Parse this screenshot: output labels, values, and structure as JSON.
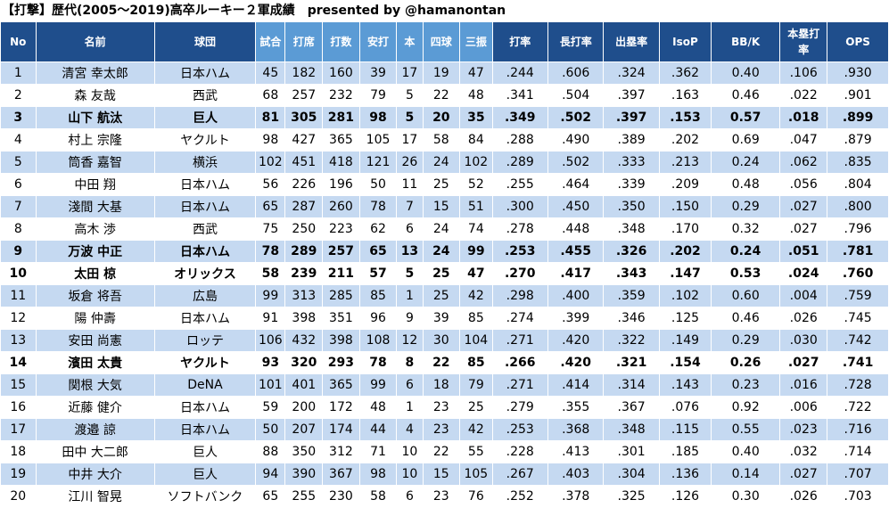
{
  "title": "【打撃】歴代(2005～2019)高卒ルーキー２軍成績　presented by @hamanontan",
  "headers": [
    "No",
    "名前",
    "球団",
    "試合",
    "打席",
    "打数",
    "安打",
    "本",
    "四球",
    "三振",
    "打率",
    "長打率",
    "出塁率",
    "IsoP",
    "BB/K",
    "本塁打率",
    "OPS"
  ],
  "rows": [
    {
      "cells": [
        "1",
        "清宮 幸太郎",
        "日本ハム",
        "45",
        "182",
        "160",
        "39",
        "17",
        "19",
        "47",
        ".244",
        ".606",
        ".324",
        ".362",
        "0.40",
        ".106",
        ".930"
      ],
      "bold": false
    },
    {
      "cells": [
        "2",
        "森 友哉",
        "西武",
        "68",
        "257",
        "232",
        "79",
        "5",
        "22",
        "48",
        ".341",
        ".504",
        ".397",
        ".163",
        "0.46",
        ".022",
        ".901"
      ],
      "bold": false
    },
    {
      "cells": [
        "3",
        "山下 航汰",
        "巨人",
        "81",
        "305",
        "281",
        "98",
        "5",
        "20",
        "35",
        ".349",
        ".502",
        ".397",
        ".153",
        "0.57",
        ".018",
        ".899"
      ],
      "bold": true
    },
    {
      "cells": [
        "4",
        "村上 宗隆",
        "ヤクルト",
        "98",
        "427",
        "365",
        "105",
        "17",
        "58",
        "84",
        ".288",
        ".490",
        ".389",
        ".202",
        "0.69",
        ".047",
        ".879"
      ],
      "bold": false
    },
    {
      "cells": [
        "5",
        "筒香 嘉智",
        "横浜",
        "102",
        "451",
        "418",
        "121",
        "26",
        "24",
        "102",
        ".289",
        ".502",
        ".333",
        ".213",
        "0.24",
        ".062",
        ".835"
      ],
      "bold": false
    },
    {
      "cells": [
        "6",
        "中田 翔",
        "日本ハム",
        "56",
        "226",
        "196",
        "50",
        "11",
        "25",
        "52",
        ".255",
        ".464",
        ".339",
        ".209",
        "0.48",
        ".056",
        ".804"
      ],
      "bold": false
    },
    {
      "cells": [
        "7",
        "淺間 大基",
        "日本ハム",
        "65",
        "287",
        "260",
        "78",
        "7",
        "15",
        "51",
        ".300",
        ".450",
        ".350",
        ".150",
        "0.29",
        ".027",
        ".800"
      ],
      "bold": false
    },
    {
      "cells": [
        "8",
        "高木 渉",
        "西武",
        "75",
        "250",
        "223",
        "62",
        "6",
        "24",
        "74",
        ".278",
        ".448",
        ".348",
        ".170",
        "0.32",
        ".027",
        ".796"
      ],
      "bold": false
    },
    {
      "cells": [
        "9",
        "万波 中正",
        "日本ハム",
        "78",
        "289",
        "257",
        "65",
        "13",
        "24",
        "99",
        ".253",
        ".455",
        ".326",
        ".202",
        "0.24",
        ".051",
        ".781"
      ],
      "bold": true
    },
    {
      "cells": [
        "10",
        "太田 椋",
        "オリックス",
        "58",
        "239",
        "211",
        "57",
        "5",
        "25",
        "47",
        ".270",
        ".417",
        ".343",
        ".147",
        "0.53",
        ".024",
        ".760"
      ],
      "bold": true
    },
    {
      "cells": [
        "11",
        "坂倉 将吾",
        "広島",
        "99",
        "313",
        "285",
        "85",
        "1",
        "25",
        "42",
        ".298",
        ".400",
        ".359",
        ".102",
        "0.60",
        ".004",
        ".759"
      ],
      "bold": false
    },
    {
      "cells": [
        "12",
        "陽 仲壽",
        "日本ハム",
        "91",
        "398",
        "351",
        "96",
        "9",
        "39",
        "85",
        ".274",
        ".399",
        ".346",
        ".125",
        "0.46",
        ".026",
        ".745"
      ],
      "bold": false
    },
    {
      "cells": [
        "13",
        "安田 尚憲",
        "ロッテ",
        "106",
        "432",
        "398",
        "108",
        "12",
        "30",
        "104",
        ".271",
        ".420",
        ".322",
        ".149",
        "0.29",
        ".030",
        ".742"
      ],
      "bold": false
    },
    {
      "cells": [
        "14",
        "濱田 太貴",
        "ヤクルト",
        "93",
        "320",
        "293",
        "78",
        "8",
        "22",
        "85",
        ".266",
        ".420",
        ".321",
        ".154",
        "0.26",
        ".027",
        ".741"
      ],
      "bold": true
    },
    {
      "cells": [
        "15",
        "関根 大気",
        "DeNA",
        "101",
        "401",
        "365",
        "99",
        "6",
        "18",
        "79",
        ".271",
        ".414",
        ".314",
        ".143",
        "0.23",
        ".016",
        ".728"
      ],
      "bold": false
    },
    {
      "cells": [
        "16",
        "近藤 健介",
        "日本ハム",
        "59",
        "200",
        "172",
        "48",
        "1",
        "23",
        "25",
        ".279",
        ".355",
        ".367",
        ".076",
        "0.92",
        ".006",
        ".722"
      ],
      "bold": false
    },
    {
      "cells": [
        "17",
        "渡邉 諒",
        "日本ハム",
        "50",
        "207",
        "174",
        "44",
        "4",
        "23",
        "42",
        ".253",
        ".368",
        ".348",
        ".115",
        "0.55",
        ".023",
        ".716"
      ],
      "bold": false
    },
    {
      "cells": [
        "18",
        "田中 大二郎",
        "巨人",
        "88",
        "350",
        "312",
        "71",
        "10",
        "22",
        "55",
        ".228",
        ".413",
        ".301",
        ".185",
        "0.40",
        ".032",
        ".714"
      ],
      "bold": false
    },
    {
      "cells": [
        "19",
        "中井 大介",
        "巨人",
        "94",
        "390",
        "367",
        "98",
        "10",
        "15",
        "105",
        ".267",
        ".403",
        ".304",
        ".136",
        "0.14",
        ".027",
        ".707"
      ],
      "bold": false
    },
    {
      "cells": [
        "20",
        "江川 智晃",
        "ソフトバンク",
        "65",
        "255",
        "230",
        "58",
        "6",
        "23",
        "76",
        ".252",
        ".378",
        ".325",
        ".126",
        "0.30",
        ".026",
        ".703"
      ],
      "bold": false
    }
  ]
}
